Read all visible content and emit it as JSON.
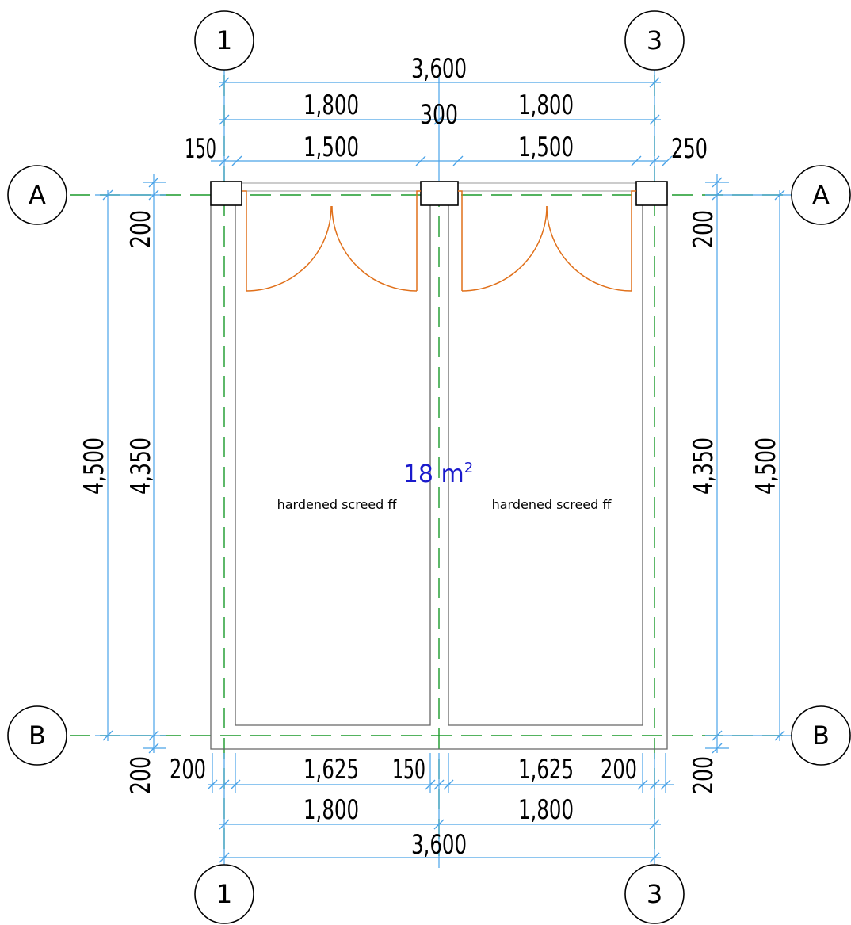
{
  "grid": {
    "columns": [
      "1",
      "3"
    ],
    "rows": [
      "A",
      "B"
    ]
  },
  "dimensions": {
    "top_total": "3,600",
    "top_left": "1,800",
    "top_right": "1,800",
    "top_mid_column": "300",
    "door_left_col": "150",
    "door_left": "1,500",
    "door_right": "1,500",
    "door_right_col": "250",
    "left_outer_height": "4,500",
    "left_inner_height": "4,350",
    "left_top_offset": "200",
    "left_bottom_offset": "200",
    "right_inner_height": "4,350",
    "right_outer_height": "4,500",
    "right_top_offset": "200",
    "right_bottom_offset": "200",
    "bottom_left_wall": "200",
    "bottom_left_room": "1,625",
    "bottom_mid_wall": "150",
    "bottom_right_room": "1,625",
    "bottom_right_wall": "200",
    "bottom_left": "1,800",
    "bottom_right": "1,800",
    "bottom_total": "3,600"
  },
  "rooms": {
    "area": "18 m",
    "area_sup": "2",
    "left_finish": "hardened screed ff",
    "right_finish": "hardened screed ff"
  },
  "colors": {
    "dimension": "#4aa3e8",
    "grid": "#1a9a2a",
    "door": "#e0701a",
    "area_text": "#1a1acc"
  }
}
